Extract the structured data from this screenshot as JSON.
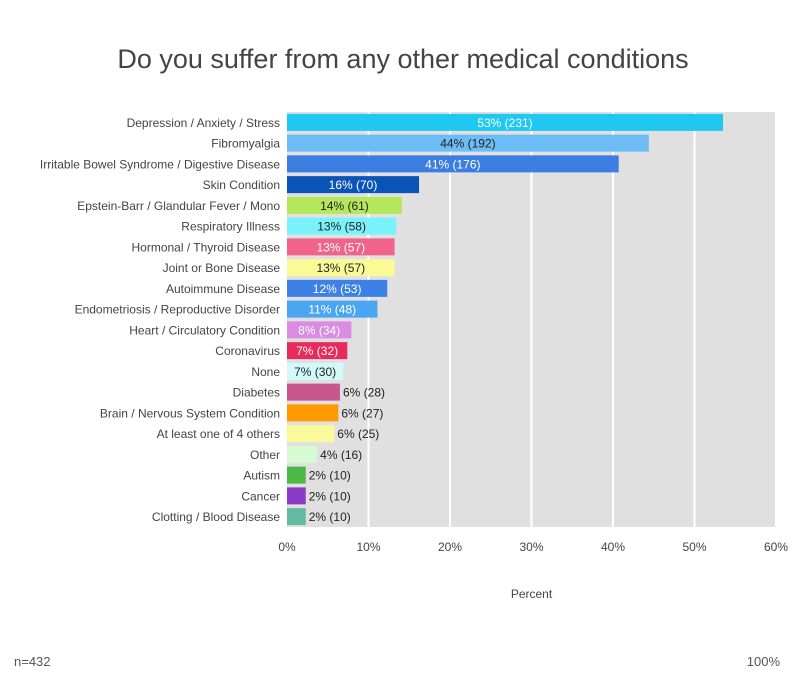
{
  "chart_data": {
    "type": "bar",
    "orientation": "horizontal",
    "title": "Do you suffer from any other medical conditions",
    "xlabel": "Percent",
    "ylabel": "",
    "xlim": [
      0,
      60
    ],
    "xticks": [
      "0%",
      "10%",
      "20%",
      "30%",
      "40%",
      "50%",
      "60%"
    ],
    "grid": true,
    "categories": [
      "Depression / Anxiety / Stress",
      "Fibromyalgia",
      "Irritable Bowel Syndrome / Digestive Disease",
      "Skin Condition",
      "Epstein-Barr / Glandular Fever / Mono",
      "Respiratory Illness",
      "Hormonal / Thyroid Disease",
      "Joint or Bone Disease",
      "Autoimmune Disease",
      "Endometriosis / Reproductive Disorder",
      "Heart / Circulatory Condition",
      "Coronavirus",
      "None",
      "Diabetes",
      "Brain / Nervous System Condition",
      "At least one of 4 others",
      "Other",
      "Autism",
      "Cancer",
      "Clotting / Blood Disease"
    ],
    "values": [
      53.5,
      44.4,
      40.7,
      16.2,
      14.1,
      13.4,
      13.2,
      13.2,
      12.3,
      11.1,
      7.9,
      7.4,
      6.9,
      6.5,
      6.3,
      5.8,
      3.7,
      2.3,
      2.3,
      2.3
    ],
    "data_labels": [
      "53% (231)",
      "44% (192)",
      "41% (176)",
      "16% (70)",
      "14% (61)",
      "13% (58)",
      "13% (57)",
      "13% (57)",
      "12% (53)",
      "11% (48)",
      "8% (34)",
      "7% (32)",
      "7% (30)",
      "6% (28)",
      "6% (27)",
      "6% (25)",
      "4% (16)",
      "2% (10)",
      "2% (10)",
      "2% (10)"
    ],
    "colors": [
      "#1ec8f0",
      "#6cbdf5",
      "#3b7de0",
      "#0a54b8",
      "#b4e85a",
      "#7af2fa",
      "#f0648c",
      "#fafa96",
      "#3c82e6",
      "#4aa6f2",
      "#d98ce0",
      "#e82a5c",
      "#d2fafa",
      "#c8578c",
      "#ff9900",
      "#fafa9a",
      "#d6fad2",
      "#4cb848",
      "#8a3cc8",
      "#63baa0"
    ],
    "label_colors": [
      "#ffffff",
      "#222222",
      "#ffffff",
      "#ffffff",
      "#222222",
      "#222222",
      "#ffffff",
      "#222222",
      "#ffffff",
      "#ffffff",
      "#ffffff",
      "#ffffff",
      "#222222",
      "#ffffff",
      "#222222",
      "#222222",
      "#222222",
      "#222222",
      "#222222",
      "#222222"
    ],
    "plot_background": "#e0e0e0"
  },
  "footer": {
    "sample_size": "n=432",
    "total": "100%"
  }
}
